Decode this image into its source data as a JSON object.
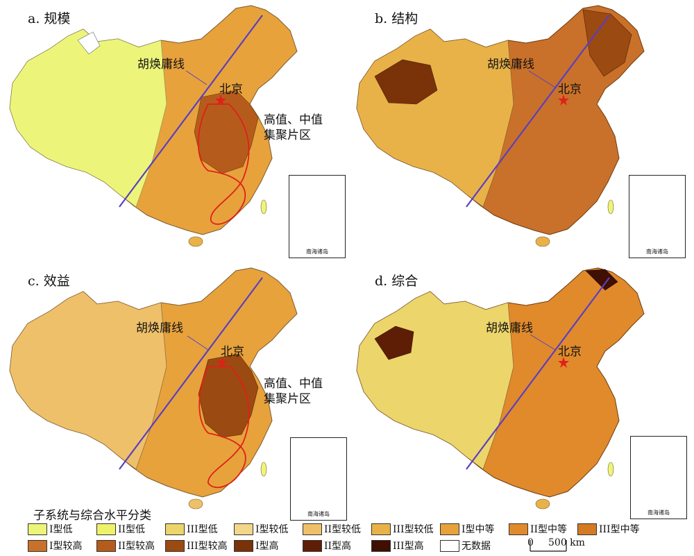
{
  "panels": [
    {
      "title": "a. 规模",
      "hu_line_label": "胡焕庸线",
      "capital_label": "北京",
      "cluster_label_line1": "高值、中值",
      "cluster_label_line2": "集聚片区",
      "inset_label": "南海诸岛"
    },
    {
      "title": "b. 结构",
      "hu_line_label": "胡焕庸线",
      "capital_label": "北京",
      "inset_label": "南海诸岛"
    },
    {
      "title": "c. 效益",
      "hu_line_label": "胡焕庸线",
      "capital_label": "北京",
      "cluster_label_line1": "高值、中值",
      "cluster_label_line2": "集聚片区",
      "inset_label": "南海诸岛"
    },
    {
      "title": "d. 综合",
      "hu_line_label": "胡焕庸线",
      "capital_label": "北京",
      "inset_label": "南海诸岛"
    }
  ],
  "legend": {
    "title": "子系统与综合水平分类",
    "row1": [
      {
        "label": "I型低",
        "color": "#ecf57a"
      },
      {
        "label": "II型低",
        "color": "#eef26a"
      },
      {
        "label": "III型低",
        "color": "#ecd56a"
      },
      {
        "label": "I型较低",
        "color": "#f2d78a"
      },
      {
        "label": "II型较低",
        "color": "#efc06a"
      },
      {
        "label": "III型较低",
        "color": "#e9b248"
      },
      {
        "label": "I型中等",
        "color": "#e7a23c"
      },
      {
        "label": "II型中等",
        "color": "#e08a2c"
      },
      {
        "label": "III型中等",
        "color": "#d47a22"
      }
    ],
    "row2": [
      {
        "label": "I型较高",
        "color": "#c9712a"
      },
      {
        "label": "II型较高",
        "color": "#b55c1c"
      },
      {
        "label": "III型较高",
        "color": "#9b4a12"
      },
      {
        "label": "I型高",
        "color": "#7a3208"
      },
      {
        "label": "II型高",
        "color": "#5e1e06"
      },
      {
        "label": "III型高",
        "color": "#3f0f04"
      },
      {
        "label": "无数据",
        "color": "#ffffff"
      }
    ]
  },
  "scale": {
    "zero": "0",
    "dist": "500 km"
  },
  "colors": {
    "hu_line": "#5a3fc0",
    "beijing_star": "#e0201a",
    "cluster_outline": "#e0201a"
  }
}
